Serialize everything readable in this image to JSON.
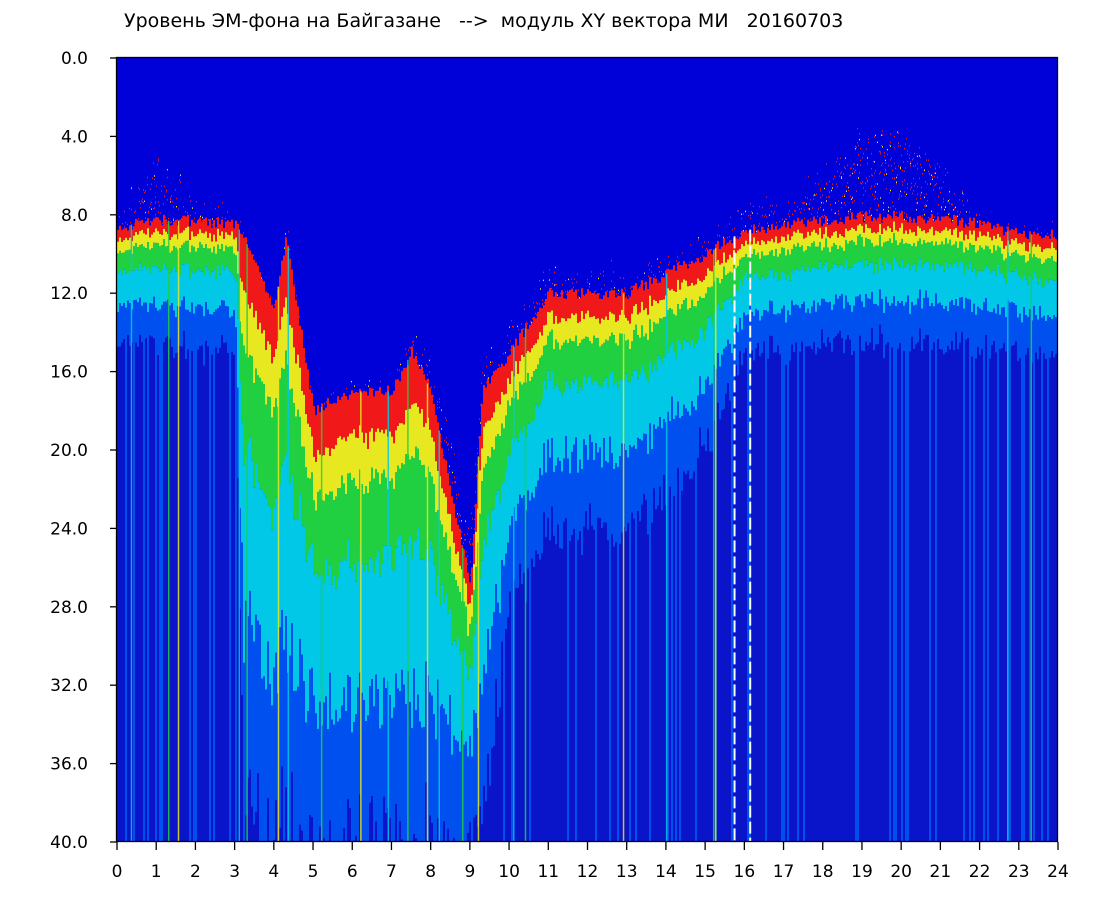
{
  "chart_data": {
    "type": "heatmap",
    "title": "Уровень ЭМ-фона на Байгазане   -->  модуль XY вектора МИ   20160703",
    "xlabel": "",
    "ylabel": "",
    "xlim": [
      0,
      24
    ],
    "ylim": [
      40,
      0
    ],
    "y_inverted": true,
    "grid": false,
    "x_ticks": [
      "0",
      "1",
      "2",
      "3",
      "4",
      "5",
      "6",
      "7",
      "8",
      "9",
      "10",
      "11",
      "12",
      "13",
      "14",
      "15",
      "16",
      "17",
      "18",
      "19",
      "20",
      "21",
      "22",
      "23",
      "24"
    ],
    "y_ticks": [
      "0.0",
      "4.0",
      "8.0",
      "12.0",
      "16.0",
      "20.0",
      "24.0",
      "28.0",
      "32.0",
      "36.0",
      "40.0"
    ],
    "colors": {
      "background": "#0000d8",
      "deep": "#0a14c8",
      "blue": "#0050f0",
      "cyan": "#00c8e6",
      "green": "#20d040",
      "yellow": "#e8e820",
      "red": "#f01818",
      "gap_marker": "#ffffff"
    },
    "activity_boundary": {
      "description": "upper edge of the noise band by hour",
      "x": [
        0,
        0.5,
        1,
        2,
        3,
        3.2,
        4,
        4.3,
        5,
        6,
        7,
        7.5,
        8,
        8.5,
        9,
        9.3,
        10,
        11,
        12,
        13,
        14,
        15,
        16,
        17,
        18,
        19,
        19.5,
        20,
        21,
        22,
        23,
        24
      ],
      "red_top": [
        8.5,
        6.5,
        5.5,
        7.5,
        8,
        9,
        13,
        9,
        18,
        17,
        17,
        14,
        16,
        20,
        24,
        16,
        14,
        11,
        11,
        11,
        10,
        9.5,
        7.5,
        7.5,
        5.5,
        4,
        3.5,
        4,
        5.5,
        8.5,
        9,
        9
      ],
      "band_top": [
        8.5,
        8.5,
        8.3,
        8.3,
        8.5,
        9,
        13,
        9,
        18,
        17,
        17,
        15,
        17,
        22,
        27,
        17,
        15,
        12,
        12,
        12,
        11,
        10,
        8.8,
        8.5,
        8.3,
        8.1,
        8.1,
        8.1,
        8.2,
        8.5,
        9,
        9
      ],
      "saturation_depth": [
        14.5,
        14.5,
        14.5,
        15,
        15,
        38,
        40,
        40,
        40,
        40,
        40,
        40,
        40,
        40,
        40,
        38,
        28,
        24,
        24,
        24,
        22,
        20,
        15,
        15,
        14.5,
        14.5,
        14.5,
        14.5,
        14.5,
        14.5,
        15,
        15
      ]
    },
    "gap_lines_hours": [
      15.75,
      16.15
    ],
    "vertical_spikes_hours": [
      0.35,
      1.3,
      1.55,
      3.1,
      3.3,
      4.1,
      4.35,
      5.2,
      6.2,
      6.9,
      7.4,
      7.9,
      8.2,
      8.8,
      9.2,
      10.1,
      10.4,
      12.9,
      14.0,
      15.2,
      15.25,
      22.7,
      23.3
    ]
  }
}
